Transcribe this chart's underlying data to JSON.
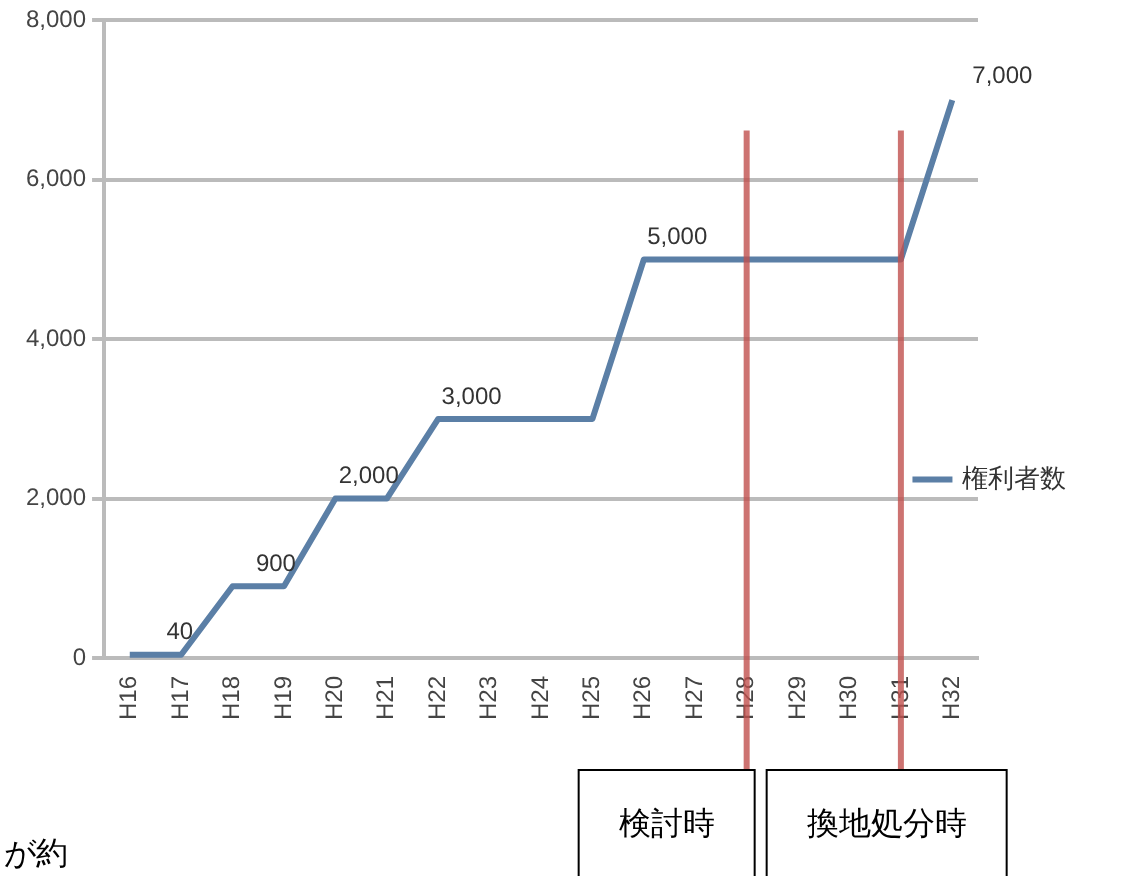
{
  "chart_data": {
    "type": "line",
    "categories": [
      "H16",
      "H17",
      "H18",
      "H19",
      "H20",
      "H21",
      "H22",
      "H23",
      "H24",
      "H25",
      "H26",
      "H27",
      "H28",
      "H29",
      "H30",
      "H31",
      "H32"
    ],
    "series": [
      {
        "name": "権利者数",
        "color": "#5b7fa6",
        "values": [
          40,
          40,
          900,
          900,
          2000,
          2000,
          3000,
          3000,
          3000,
          3000,
          5000,
          5000,
          5000,
          5000,
          5000,
          5000,
          7000
        ],
        "value_labels": [
          null,
          "40",
          null,
          "900",
          null,
          "2,000",
          null,
          "3,000",
          null,
          null,
          null,
          "5,000",
          null,
          null,
          null,
          null,
          "7,000"
        ]
      }
    ],
    "ylim": [
      0,
      8000
    ],
    "yticks": [
      0,
      {
        "value": 2000,
        "label": "2,000"
      },
      {
        "value": 4000,
        "label": "4,000"
      },
      {
        "value": 6000,
        "label": "6,000"
      },
      {
        "value": 8000,
        "label": "8,000"
      }
    ],
    "grid": "y",
    "legend": "right",
    "marker": "none",
    "line_style": "solid",
    "ref_lines": [
      {
        "axis": "x",
        "value": "H28",
        "label": "検討時",
        "color": "#c0504d"
      },
      {
        "axis": "x",
        "value": "H31",
        "label": "換地処分時",
        "color": "#c0504d"
      }
    ],
    "annotations": [
      "が約"
    ]
  }
}
